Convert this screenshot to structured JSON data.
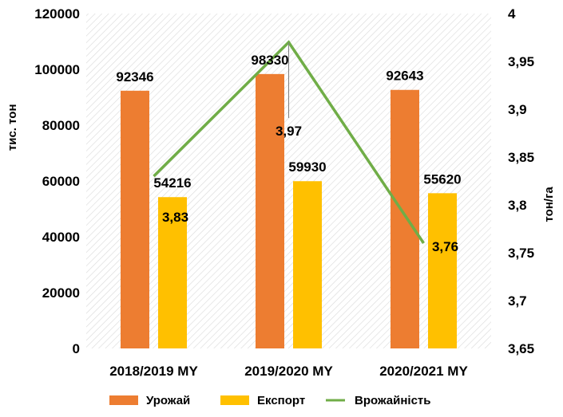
{
  "chart_data": {
    "type": "bar",
    "categories": [
      "2018/2019 MY",
      "2019/2020 MY",
      "2020/2021 MY"
    ],
    "series": [
      {
        "name": "Урожай",
        "type": "bar",
        "axis": "left",
        "color": "#ED7D31",
        "values": [
          92346,
          98330,
          92643
        ],
        "labels": [
          "92346",
          "98330",
          "92643"
        ]
      },
      {
        "name": "Експорт",
        "type": "bar",
        "axis": "left",
        "color": "#FFC000",
        "values": [
          54216,
          59930,
          55620
        ],
        "labels": [
          "54216",
          "59930",
          "55620"
        ]
      },
      {
        "name": "Врожайність",
        "type": "line",
        "axis": "right",
        "color": "#70AD47",
        "values": [
          3.83,
          3.97,
          3.76
        ],
        "labels": [
          "3,83",
          "3,97",
          "3,76"
        ]
      }
    ],
    "ylabel": "тис. тон",
    "y2label": "тон/га",
    "ylim": [
      0,
      120000
    ],
    "y2lim": [
      3.65,
      4.0
    ],
    "yticks": [
      "0",
      "20000",
      "40000",
      "60000",
      "80000",
      "100000",
      "120000"
    ],
    "y2ticks": [
      "3,65",
      "3,7",
      "3,75",
      "3,8",
      "3,85",
      "3,9",
      "3,95",
      "4"
    ],
    "grid": false,
    "background": "diagonal-hatch",
    "legend_position": "bottom"
  }
}
